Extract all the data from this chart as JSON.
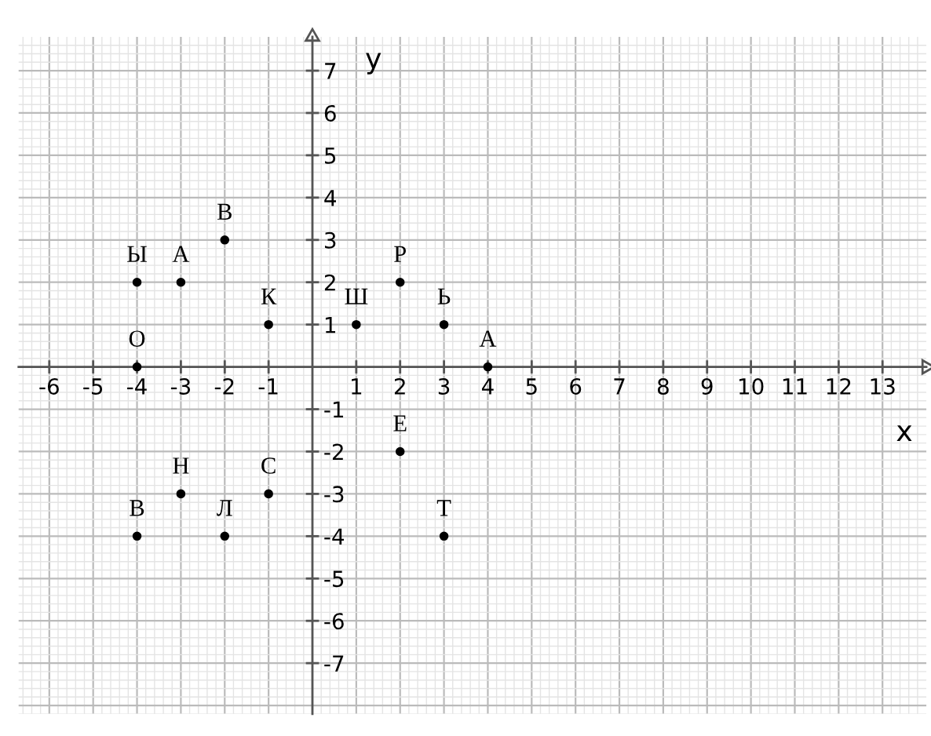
{
  "chart_data": {
    "type": "scatter",
    "xlabel": "x",
    "ylabel": "y",
    "x": [
      -4,
      -4,
      -3,
      -2,
      -1,
      1,
      2,
      3,
      4,
      2,
      -3,
      -1,
      -4,
      -2,
      3
    ],
    "values": [
      0,
      2,
      2,
      3,
      1,
      1,
      2,
      1,
      0,
      -2,
      -3,
      -3,
      -4,
      -4,
      -4
    ],
    "color": "#000000",
    "marker": "circle",
    "grid": true,
    "xlim": [
      -6.7,
      14
    ],
    "ylim": [
      -8.2,
      7.8
    ],
    "xticks": [
      -6,
      -5,
      -4,
      -3,
      -2,
      -1,
      1,
      2,
      3,
      4,
      5,
      6,
      7,
      8,
      9,
      10,
      11,
      12,
      13
    ],
    "yticks": [
      -7,
      -6,
      -5,
      -4,
      -3,
      -2,
      -1,
      1,
      2,
      3,
      4,
      5,
      6,
      7
    ],
    "annotations": [
      {
        "text": "О",
        "x": -4,
        "y": 0
      },
      {
        "text": "Ы",
        "x": -4,
        "y": 2
      },
      {
        "text": "А",
        "x": -3,
        "y": 2
      },
      {
        "text": "В",
        "x": -2,
        "y": 3
      },
      {
        "text": "К",
        "x": -1,
        "y": 1
      },
      {
        "text": "Ш",
        "x": 1,
        "y": 1
      },
      {
        "text": "Р",
        "x": 2,
        "y": 2
      },
      {
        "text": "Ь",
        "x": 3,
        "y": 1
      },
      {
        "text": "А",
        "x": 4,
        "y": 0
      },
      {
        "text": "Е",
        "x": 2,
        "y": -2
      },
      {
        "text": "Н",
        "x": -3,
        "y": -3
      },
      {
        "text": "С",
        "x": -1,
        "y": -3
      },
      {
        "text": "В",
        "x": -4,
        "y": -4
      },
      {
        "text": "Л",
        "x": -2,
        "y": -4
      },
      {
        "text": "Т",
        "x": 3,
        "y": -4
      }
    ]
  }
}
